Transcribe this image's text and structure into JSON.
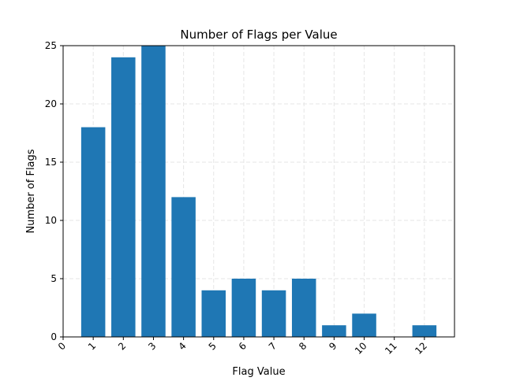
{
  "chart_data": {
    "type": "bar",
    "title": "Number of Flags per Value",
    "xlabel": "Flag Value",
    "ylabel": "Number of Flags",
    "categories": [
      "1",
      "2",
      "3",
      "4",
      "5",
      "6",
      "7",
      "8",
      "9",
      "10",
      "11",
      "12"
    ],
    "x": [
      1,
      2,
      3,
      4,
      5,
      6,
      7,
      8,
      9,
      10,
      11,
      12
    ],
    "values": [
      18,
      24,
      25,
      12,
      4,
      5,
      4,
      5,
      1,
      2,
      0,
      1
    ],
    "x_ticks": [
      0,
      1,
      2,
      3,
      4,
      5,
      6,
      7,
      8,
      9,
      10,
      11,
      12
    ],
    "y_ticks": [
      0,
      5,
      10,
      15,
      20,
      25
    ],
    "xlim": [
      0,
      13
    ],
    "ylim": [
      0,
      25
    ],
    "grid": true,
    "x_tick_rotation_deg": 45,
    "bar_color": "#1f77b4",
    "grid_color": "#e6e6e6"
  }
}
